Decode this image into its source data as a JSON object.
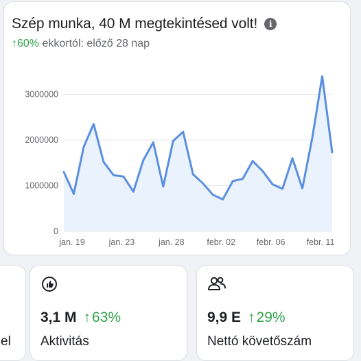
{
  "main_card": {
    "title": "Szép munka, 40 M megtekintésed volt!",
    "change": "↑60%",
    "change_suffix": " ekkortól: előző 28 nap"
  },
  "chart_data": {
    "type": "area",
    "y_ticks": [
      "0",
      "1000000",
      "2000000",
      "3000000"
    ],
    "ylim": [
      0,
      3700000
    ],
    "x_tick_labels": [
      "jan. 19",
      "jan. 23",
      "jan. 28",
      "febr. 02",
      "febr. 06",
      "febr. 11"
    ],
    "x_tick_index": [
      0,
      5,
      10,
      15,
      20,
      25
    ],
    "values": [
      1300000,
      820000,
      1850000,
      2350000,
      1520000,
      1230000,
      1200000,
      870000,
      1560000,
      1950000,
      980000,
      1980000,
      2180000,
      1250000,
      1050000,
      800000,
      700000,
      1100000,
      1150000,
      1540000,
      1320000,
      1030000,
      930000,
      1600000,
      940000,
      2050000,
      3400000,
      1730000
    ],
    "line_color": "#5a8fe0",
    "fill_color": "#eaf2fd",
    "grid": true
  },
  "metrics": [
    {
      "icon": "thumbs-up-icon",
      "value": "",
      "change": "",
      "label": "el"
    },
    {
      "icon": "thumbs-up-icon",
      "value": "3,1 M",
      "arrow": "↑",
      "change": "63%",
      "label": "Aktivitás"
    },
    {
      "icon": "people-icon",
      "value": "9,9 E",
      "arrow": "↑",
      "change": "29%",
      "label": "Nettó követőszám"
    }
  ]
}
